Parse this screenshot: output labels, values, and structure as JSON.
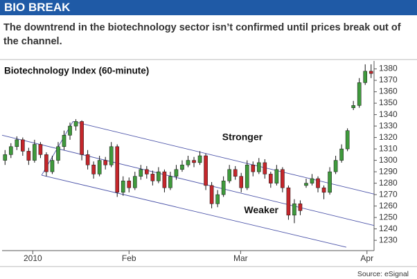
{
  "chart_data": {
    "type": "candlestick",
    "header": "BIO BREAK",
    "subtitle": [
      "The downtrend in the biotechnology sector isn’t confirmed until prices break out of",
      "the channel."
    ],
    "title": "Biotechnology Index (60-minute)",
    "source": "Source: eSignal",
    "annotations": [
      {
        "text": "Stronger",
        "x": 40.2,
        "y": 1320
      },
      {
        "text": "Weaker",
        "x": 43.4,
        "y": 1256
      }
    ],
    "x": [
      0,
      1,
      2,
      3,
      4,
      5,
      6,
      7,
      8,
      9,
      10,
      11,
      12,
      13,
      14,
      15,
      16,
      17,
      18,
      19,
      20,
      21,
      22,
      23,
      24,
      25,
      26,
      27,
      28,
      29,
      30,
      31,
      32,
      33,
      34,
      35,
      36,
      37,
      38,
      39,
      40,
      41,
      42,
      43,
      44,
      45,
      46,
      47,
      48,
      49,
      50,
      51,
      52,
      53,
      54,
      55,
      56,
      57,
      58,
      59,
      60,
      61,
      62
    ],
    "open": [
      1300,
      1305,
      1312,
      1318,
      1308,
      1300,
      1314,
      1305,
      1290,
      1300,
      1312,
      1322,
      1330,
      1334,
      1305,
      1296,
      1288,
      1300,
      1296,
      1312,
      1272,
      1282,
      1276,
      1286,
      1292,
      1288,
      1282,
      1290,
      1276,
      1286,
      1292,
      1296,
      1300,
      1298,
      1304,
      1278,
      1262,
      1270,
      1282,
      1292,
      1286,
      1276,
      1296,
      1290,
      1298,
      1288,
      1280,
      1292,
      1276,
      1252,
      1262,
      1278,
      1280,
      1284,
      1276,
      1272,
      1290,
      1300,
      1310,
      1346,
      1348,
      1368,
      1378
    ],
    "high": [
      1309,
      1315,
      1321,
      1320,
      1311,
      1318,
      1316,
      1307,
      1304,
      1316,
      1326,
      1333,
      1336,
      1335,
      1309,
      1299,
      1304,
      1303,
      1316,
      1314,
      1286,
      1285,
      1290,
      1296,
      1295,
      1291,
      1294,
      1292,
      1290,
      1296,
      1300,
      1304,
      1303,
      1308,
      1306,
      1281,
      1274,
      1286,
      1296,
      1295,
      1289,
      1300,
      1299,
      1302,
      1301,
      1290,
      1296,
      1294,
      1278,
      1266,
      1265,
      1284,
      1288,
      1286,
      1278,
      1294,
      1304,
      1314,
      1328,
      1352,
      1372,
      1384,
      1384
    ],
    "low": [
      1296,
      1302,
      1309,
      1304,
      1296,
      1298,
      1302,
      1286,
      1288,
      1297,
      1309,
      1318,
      1326,
      1300,
      1292,
      1284,
      1286,
      1292,
      1294,
      1268,
      1269,
      1272,
      1274,
      1283,
      1284,
      1278,
      1280,
      1272,
      1274,
      1283,
      1290,
      1294,
      1294,
      1296,
      1274,
      1258,
      1259,
      1268,
      1280,
      1283,
      1272,
      1274,
      1286,
      1288,
      1284,
      1276,
      1278,
      1272,
      1248,
      1245,
      1252,
      1276,
      1278,
      1272,
      1266,
      1270,
      1288,
      1298,
      1308,
      1344,
      1346,
      1366,
      1372
    ],
    "close": [
      1305,
      1312,
      1318,
      1308,
      1300,
      1314,
      1305,
      1290,
      1300,
      1312,
      1322,
      1330,
      1334,
      1305,
      1296,
      1288,
      1300,
      1296,
      1312,
      1272,
      1282,
      1276,
      1286,
      1292,
      1288,
      1282,
      1290,
      1276,
      1286,
      1292,
      1296,
      1300,
      1298,
      1304,
      1278,
      1262,
      1270,
      1282,
      1292,
      1286,
      1276,
      1296,
      1290,
      1298,
      1288,
      1280,
      1292,
      1276,
      1252,
      1262,
      1256,
      1280,
      1284,
      1276,
      1272,
      1290,
      1300,
      1310,
      1326,
      1348,
      1368,
      1378,
      1376
    ],
    "up_color": "#3f9a3c",
    "down_color": "#c4262b",
    "header_color": "#1f5aa6",
    "line_color": "#4a52a8",
    "lines": [
      {
        "x": [
          11.5,
          62.5
        ],
        "y": [
          1334,
          1270.5
        ]
      },
      {
        "x": [
          -0.5,
          62.5
        ],
        "y": [
          1322,
          1243
        ]
      },
      {
        "x": [
          6.2,
          57.8
        ],
        "y": [
          1287,
          1224
        ]
      },
      {
        "x": [
          6.2,
          11.5
        ],
        "y": [
          1287,
          1334
        ]
      }
    ],
    "xlim": [
      -0.5,
      62.5
    ],
    "xticks": [
      {
        "value": 4.7,
        "label": "2010"
      },
      {
        "value": 21,
        "label": "Feb"
      },
      {
        "value": 39.9,
        "label": "Mar"
      },
      {
        "value": 61.3,
        "label": "Apr"
      }
    ],
    "ylim": [
      1221,
      1387
    ],
    "yticks": [
      1230,
      1240,
      1250,
      1260,
      1270,
      1280,
      1290,
      1300,
      1310,
      1320,
      1330,
      1340,
      1350,
      1360,
      1370,
      1380
    ]
  }
}
